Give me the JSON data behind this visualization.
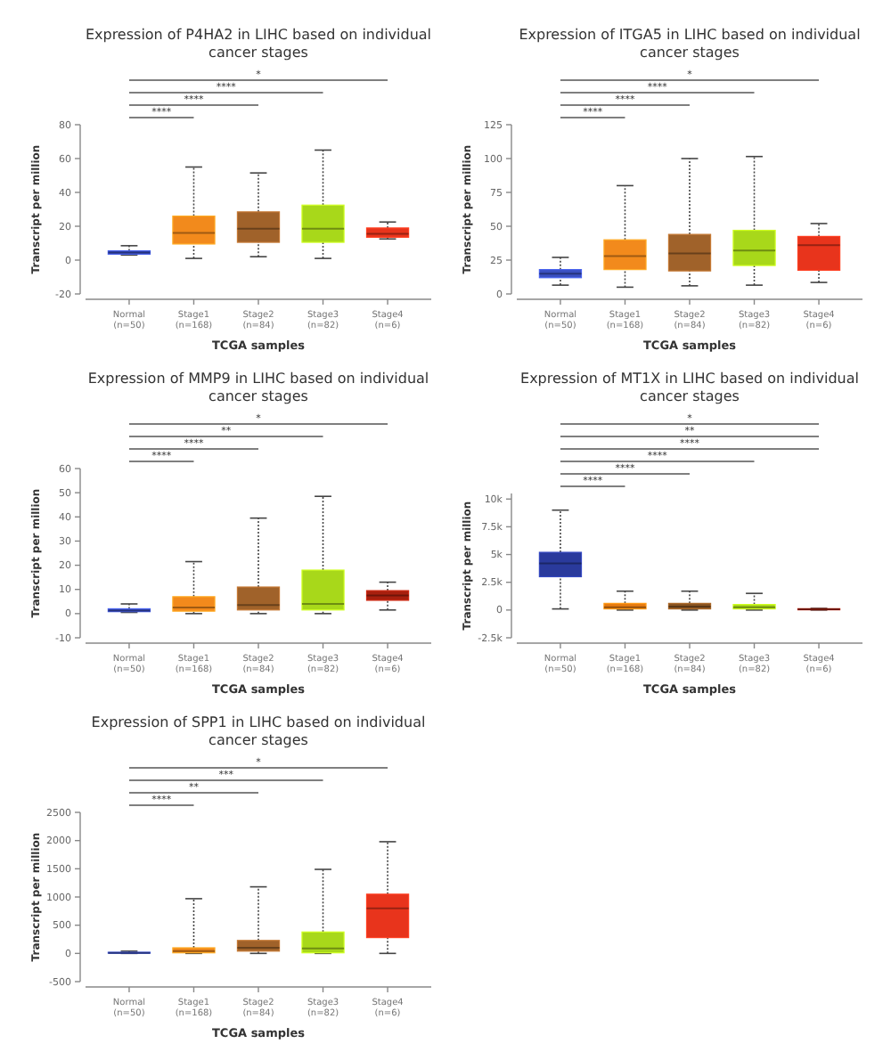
{
  "chart_data": [
    {
      "type": "box",
      "title": "Expression of P4HA2 in LIHC based on individual cancer stages",
      "xlabel": "TCGA samples",
      "ylabel": "Transcript per million",
      "categories": [
        "Normal\n(n=50)",
        "Stage1\n(n=168)",
        "Stage2\n(n=84)",
        "Stage3\n(n=82)",
        "Stage4\n(n=6)"
      ],
      "colors": [
        "#3a4fc0",
        "#f28a1c",
        "#a0622a",
        "#a8d81a",
        "#e8341c"
      ],
      "boxes": [
        {
          "low": 3,
          "q1": 3.5,
          "median": 4.5,
          "q3": 5.5,
          "high": 8.5
        },
        {
          "low": 1,
          "q1": 9.5,
          "median": 16,
          "q3": 26,
          "high": 55
        },
        {
          "low": 2,
          "q1": 10.5,
          "median": 18.5,
          "q3": 28.5,
          "high": 51.5
        },
        {
          "low": 1,
          "q1": 10.5,
          "median": 18.5,
          "q3": 32.5,
          "high": 65
        },
        {
          "low": 12.5,
          "q1": 13.5,
          "median": 15.5,
          "q3": 19,
          "high": 22.5
        }
      ],
      "ylim": [
        -20,
        80
      ],
      "yticks": [
        -20,
        0,
        20,
        40,
        60,
        80
      ],
      "annotations": [
        "****",
        "****",
        "****",
        "*"
      ]
    },
    {
      "type": "box",
      "title": "Expression of ITGA5 in LIHC based on individual cancer stages",
      "xlabel": "TCGA samples",
      "ylabel": "Transcript per million",
      "categories": [
        "Normal\n(n=50)",
        "Stage1\n(n=168)",
        "Stage2\n(n=84)",
        "Stage3\n(n=82)",
        "Stage4\n(n=6)"
      ],
      "colors": [
        "#3a4fc0",
        "#f28a1c",
        "#a0622a",
        "#a8d81a",
        "#e8341c"
      ],
      "boxes": [
        {
          "low": 6.5,
          "q1": 12,
          "median": 15,
          "q3": 18,
          "high": 27
        },
        {
          "low": 5,
          "q1": 18,
          "median": 28,
          "q3": 40,
          "high": 80
        },
        {
          "low": 6,
          "q1": 17,
          "median": 30,
          "q3": 44,
          "high": 100
        },
        {
          "low": 6.5,
          "q1": 21,
          "median": 32,
          "q3": 47,
          "high": 101.5
        },
        {
          "low": 8.5,
          "q1": 17.5,
          "median": 36,
          "q3": 42.5,
          "high": 52
        }
      ],
      "ylim": [
        0,
        125
      ],
      "yticks": [
        0,
        25,
        50,
        75,
        100,
        125
      ],
      "annotations": [
        "****",
        "****",
        "****",
        "*"
      ]
    },
    {
      "type": "box",
      "title": "Expression of MMP9 in LIHC based on individual cancer stages",
      "xlabel": "TCGA samples",
      "ylabel": "Transcript per million",
      "categories": [
        "Normal\n(n=50)",
        "Stage1\n(n=168)",
        "Stage2\n(n=84)",
        "Stage3\n(n=82)",
        "Stage4\n(n=6)"
      ],
      "colors": [
        "#3a4fc0",
        "#f28a1c",
        "#a0622a",
        "#a8d81a",
        "#a8200e"
      ],
      "boxes": [
        {
          "low": 0.5,
          "q1": 0.8,
          "median": 1.2,
          "q3": 2,
          "high": 4
        },
        {
          "low": 0,
          "q1": 1,
          "median": 2.5,
          "q3": 7,
          "high": 21.5
        },
        {
          "low": 0,
          "q1": 1.5,
          "median": 3.5,
          "q3": 11,
          "high": 39.5
        },
        {
          "low": 0,
          "q1": 1.5,
          "median": 4,
          "q3": 18,
          "high": 48.5
        },
        {
          "low": 1.5,
          "q1": 5.5,
          "median": 7.5,
          "q3": 9.5,
          "high": 13
        }
      ],
      "ylim": [
        -10,
        60
      ],
      "yticks": [
        -10,
        0,
        10,
        20,
        30,
        40,
        50,
        60
      ],
      "annotations": [
        "****",
        "****",
        "**",
        "*"
      ]
    },
    {
      "type": "box",
      "title": "Expression of MT1X in LIHC based on individual cancer stages",
      "xlabel": "TCGA samples",
      "ylabel": "Transcript per million",
      "categories": [
        "Normal\n(n=50)",
        "Stage1\n(n=168)",
        "Stage2\n(n=84)",
        "Stage3\n(n=82)",
        "Stage4\n(n=6)"
      ],
      "colors": [
        "#2a3a9c",
        "#e87c10",
        "#8a5420",
        "#a8d81a",
        "#a8200e"
      ],
      "boxes": [
        {
          "low": 100,
          "q1": 3000,
          "median": 4200,
          "q3": 5200,
          "high": 9000
        },
        {
          "low": 0,
          "q1": 100,
          "median": 250,
          "q3": 600,
          "high": 1700
        },
        {
          "low": 0,
          "q1": 100,
          "median": 300,
          "q3": 600,
          "high": 1700
        },
        {
          "low": 0,
          "q1": 100,
          "median": 250,
          "q3": 500,
          "high": 1500
        },
        {
          "low": 0,
          "q1": 20,
          "median": 60,
          "q3": 120,
          "high": 150
        }
      ],
      "ylim": [
        -2500,
        10500
      ],
      "yticks": [
        {
          "value": -2500,
          "label": "-2.5k"
        },
        0,
        {
          "value": 2500,
          "label": "2.5k"
        },
        {
          "value": 5000,
          "label": "5k"
        },
        {
          "value": 7500,
          "label": "7.5k"
        },
        {
          "value": 10000,
          "label": "10k"
        }
      ],
      "annotations": [
        "****",
        "****",
        "****",
        "****",
        "**",
        "*"
      ]
    },
    {
      "type": "box",
      "title": "Expression of SPP1 in LIHC based on individual cancer stages",
      "xlabel": "TCGA samples",
      "ylabel": "Transcript per million",
      "categories": [
        "Normal\n(n=50)",
        "Stage1\n(n=168)",
        "Stage2\n(n=84)",
        "Stage3\n(n=82)",
        "Stage4\n(n=6)"
      ],
      "colors": [
        "#3a4fc0",
        "#f28a1c",
        "#a0622a",
        "#a8d81a",
        "#e8341c"
      ],
      "boxes": [
        {
          "low": 0,
          "q1": 5,
          "median": 10,
          "q3": 20,
          "high": 40
        },
        {
          "low": 0,
          "q1": 10,
          "median": 40,
          "q3": 100,
          "high": 970
        },
        {
          "low": 0,
          "q1": 40,
          "median": 100,
          "q3": 230,
          "high": 1180
        },
        {
          "low": 0,
          "q1": 10,
          "median": 90,
          "q3": 380,
          "high": 1490
        },
        {
          "low": 0,
          "q1": 280,
          "median": 800,
          "q3": 1050,
          "high": 1980
        }
      ],
      "ylim": [
        -500,
        2500
      ],
      "yticks": [
        -500,
        0,
        500,
        1000,
        1500,
        2000,
        2500
      ],
      "annotations": [
        "****",
        "**",
        "***",
        "*"
      ]
    }
  ]
}
